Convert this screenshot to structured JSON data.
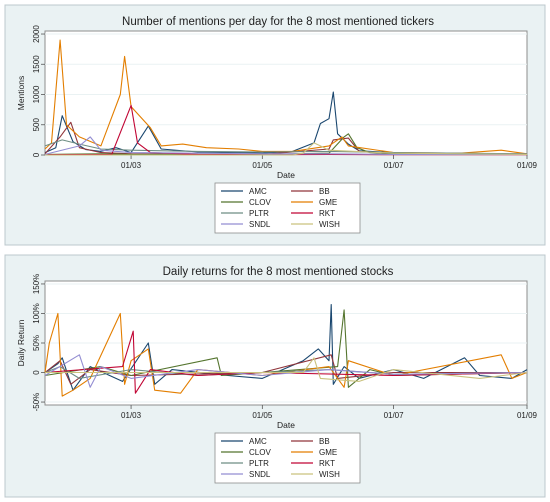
{
  "chart_data": [
    {
      "type": "line",
      "title": "Number of mentions per day for the 8 most mentioned tickers",
      "xlabel": "Date",
      "ylabel": "Mentions",
      "x_ticks": [
        "01/03",
        "01/05",
        "01/07",
        "01/09"
      ],
      "x_tick_dates": [
        "2021-03-01",
        "2021-05-01",
        "2021-07-01",
        "2021-09-01"
      ],
      "x_range": [
        "2021-01-20",
        "2021-09-01"
      ],
      "y_ticks": [
        "0",
        "500",
        "1000",
        "1500",
        "2000"
      ],
      "y_tick_values": [
        0,
        500,
        1000,
        1500,
        2000
      ],
      "ylim": [
        0,
        2050
      ],
      "grid": true,
      "legend_position": "bottom",
      "legend": [
        "AMC",
        "BB",
        "CLOV",
        "GME",
        "PLTR",
        "RKT",
        "SNDL",
        "WISH"
      ],
      "series": [
        {
          "name": "AMC",
          "color": "#1a476f",
          "points": [
            [
              "2021-01-20",
              40
            ],
            [
              "2021-01-25",
              120
            ],
            [
              "2021-01-28",
              650
            ],
            [
              "2021-02-02",
              220
            ],
            [
              "2021-02-08",
              90
            ],
            [
              "2021-02-15",
              60
            ],
            [
              "2021-02-22",
              120
            ],
            [
              "2021-03-01",
              40
            ],
            [
              "2021-03-09",
              480
            ],
            [
              "2021-03-15",
              100
            ],
            [
              "2021-04-01",
              50
            ],
            [
              "2021-04-15",
              40
            ],
            [
              "2021-05-01",
              30
            ],
            [
              "2021-05-15",
              60
            ],
            [
              "2021-05-25",
              200
            ],
            [
              "2021-05-28",
              520
            ],
            [
              "2021-06-01",
              600
            ],
            [
              "2021-06-03",
              1040
            ],
            [
              "2021-06-05",
              350
            ],
            [
              "2021-06-10",
              180
            ],
            [
              "2021-06-15",
              70
            ],
            [
              "2021-07-01",
              40
            ],
            [
              "2021-07-15",
              30
            ],
            [
              "2021-08-01",
              30
            ],
            [
              "2021-08-15",
              20
            ],
            [
              "2021-09-01",
              20
            ]
          ]
        },
        {
          "name": "BB",
          "color": "#90353b",
          "points": [
            [
              "2021-01-20",
              20
            ],
            [
              "2021-01-27",
              300
            ],
            [
              "2021-02-01",
              540
            ],
            [
              "2021-02-05",
              120
            ],
            [
              "2021-02-15",
              40
            ],
            [
              "2021-03-01",
              20
            ],
            [
              "2021-04-01",
              10
            ],
            [
              "2021-05-01",
              10
            ],
            [
              "2021-06-01",
              100
            ],
            [
              "2021-06-03",
              250
            ],
            [
              "2021-06-10",
              280
            ],
            [
              "2021-06-15",
              60
            ],
            [
              "2021-07-01",
              20
            ],
            [
              "2021-08-01",
              10
            ],
            [
              "2021-09-01",
              10
            ]
          ]
        },
        {
          "name": "CLOV",
          "color": "#55752f",
          "points": [
            [
              "2021-01-20",
              10
            ],
            [
              "2021-02-15",
              20
            ],
            [
              "2021-03-01",
              10
            ],
            [
              "2021-05-01",
              10
            ],
            [
              "2021-06-01",
              30
            ],
            [
              "2021-06-08",
              300
            ],
            [
              "2021-06-10",
              350
            ],
            [
              "2021-06-14",
              120
            ],
            [
              "2021-06-20",
              40
            ],
            [
              "2021-07-01",
              20
            ],
            [
              "2021-09-01",
              10
            ]
          ]
        },
        {
          "name": "GME",
          "color": "#e37e00",
          "points": [
            [
              "2021-01-20",
              100
            ],
            [
              "2021-01-23",
              200
            ],
            [
              "2021-01-27",
              1900
            ],
            [
              "2021-01-30",
              500
            ],
            [
              "2021-02-05",
              300
            ],
            [
              "2021-02-15",
              150
            ],
            [
              "2021-02-24",
              1000
            ],
            [
              "2021-02-26",
              1630
            ],
            [
              "2021-03-01",
              800
            ],
            [
              "2021-03-10",
              450
            ],
            [
              "2021-03-15",
              150
            ],
            [
              "2021-03-25",
              180
            ],
            [
              "2021-04-05",
              120
            ],
            [
              "2021-04-20",
              100
            ],
            [
              "2021-05-01",
              60
            ],
            [
              "2021-05-15",
              60
            ],
            [
              "2021-06-01",
              150
            ],
            [
              "2021-06-07",
              300
            ],
            [
              "2021-06-10",
              150
            ],
            [
              "2021-07-01",
              40
            ],
            [
              "2021-08-01",
              30
            ],
            [
              "2021-08-20",
              80
            ],
            [
              "2021-09-01",
              20
            ]
          ]
        },
        {
          "name": "PLTR",
          "color": "#6e8e84",
          "points": [
            [
              "2021-01-20",
              150
            ],
            [
              "2021-01-28",
              250
            ],
            [
              "2021-02-05",
              180
            ],
            [
              "2021-02-15",
              100
            ],
            [
              "2021-03-01",
              80
            ],
            [
              "2021-04-01",
              60
            ],
            [
              "2021-05-01",
              50
            ],
            [
              "2021-06-01",
              60
            ],
            [
              "2021-07-01",
              40
            ],
            [
              "2021-08-01",
              30
            ],
            [
              "2021-09-01",
              20
            ]
          ]
        },
        {
          "name": "RKT",
          "color": "#c10534",
          "points": [
            [
              "2021-01-20",
              5
            ],
            [
              "2021-02-20",
              10
            ],
            [
              "2021-03-01",
              820
            ],
            [
              "2021-03-04",
              200
            ],
            [
              "2021-03-10",
              40
            ],
            [
              "2021-04-01",
              10
            ],
            [
              "2021-05-01",
              5
            ],
            [
              "2021-06-01",
              10
            ],
            [
              "2021-07-01",
              5
            ],
            [
              "2021-09-01",
              5
            ]
          ]
        },
        {
          "name": "SNDL",
          "color": "#938dd2",
          "points": [
            [
              "2021-01-20",
              10
            ],
            [
              "2021-02-05",
              150
            ],
            [
              "2021-02-10",
              300
            ],
            [
              "2021-02-15",
              80
            ],
            [
              "2021-03-01",
              40
            ],
            [
              "2021-04-01",
              30
            ],
            [
              "2021-05-01",
              20
            ],
            [
              "2021-06-01",
              20
            ],
            [
              "2021-07-01",
              10
            ],
            [
              "2021-09-01",
              10
            ]
          ]
        },
        {
          "name": "WISH",
          "color": "#cac27e",
          "points": [
            [
              "2021-01-20",
              0
            ],
            [
              "2021-05-15",
              0
            ],
            [
              "2021-05-20",
              30
            ],
            [
              "2021-05-25",
              200
            ],
            [
              "2021-05-28",
              150
            ],
            [
              "2021-06-01",
              80
            ],
            [
              "2021-07-01",
              30
            ],
            [
              "2021-08-01",
              20
            ],
            [
              "2021-09-01",
              10
            ]
          ]
        }
      ]
    },
    {
      "type": "line",
      "title": "Daily returns for the 8 most mentioned stocks",
      "xlabel": "Date",
      "ylabel": "Daily Return",
      "x_ticks": [
        "01/03",
        "01/05",
        "01/07",
        "01/09"
      ],
      "x_tick_dates": [
        "2021-03-01",
        "2021-05-01",
        "2021-07-01",
        "2021-09-01"
      ],
      "x_range": [
        "2021-01-20",
        "2021-09-01"
      ],
      "y_ticks": [
        "-50%",
        "0",
        "50%",
        "100%",
        "150%"
      ],
      "y_tick_values": [
        -50,
        0,
        50,
        100,
        150
      ],
      "ylim": [
        -55,
        155
      ],
      "grid": true,
      "legend_position": "bottom",
      "legend": [
        "AMC",
        "BB",
        "CLOV",
        "GME",
        "PLTR",
        "RKT",
        "SNDL",
        "WISH"
      ],
      "series": [
        {
          "name": "AMC",
          "color": "#1a476f",
          "points": [
            [
              "2021-01-20",
              0
            ],
            [
              "2021-01-26",
              15
            ],
            [
              "2021-01-28",
              25
            ],
            [
              "2021-02-02",
              -30
            ],
            [
              "2021-02-10",
              10
            ],
            [
              "2021-02-25",
              -15
            ],
            [
              "2021-03-09",
              50
            ],
            [
              "2021-03-12",
              -20
            ],
            [
              "2021-03-20",
              5
            ],
            [
              "2021-04-15",
              -5
            ],
            [
              "2021-05-01",
              -10
            ],
            [
              "2021-05-20",
              20
            ],
            [
              "2021-05-27",
              40
            ],
            [
              "2021-06-01",
              20
            ],
            [
              "2021-06-02",
              115
            ],
            [
              "2021-06-03",
              -20
            ],
            [
              "2021-06-08",
              10
            ],
            [
              "2021-06-15",
              -10
            ],
            [
              "2021-07-01",
              5
            ],
            [
              "2021-07-15",
              -10
            ],
            [
              "2021-08-03",
              25
            ],
            [
              "2021-08-10",
              -5
            ],
            [
              "2021-08-25",
              -10
            ],
            [
              "2021-09-01",
              5
            ]
          ]
        },
        {
          "name": "BB",
          "color": "#90353b",
          "points": [
            [
              "2021-01-20",
              0
            ],
            [
              "2021-01-27",
              20
            ],
            [
              "2021-02-01",
              -20
            ],
            [
              "2021-02-10",
              5
            ],
            [
              "2021-03-01",
              -5
            ],
            [
              "2021-05-01",
              0
            ],
            [
              "2021-06-02",
              30
            ],
            [
              "2021-06-05",
              -10
            ],
            [
              "2021-07-01",
              0
            ],
            [
              "2021-09-01",
              0
            ]
          ]
        },
        {
          "name": "CLOV",
          "color": "#55752f",
          "points": [
            [
              "2021-01-20",
              -5
            ],
            [
              "2021-02-15",
              10
            ],
            [
              "2021-03-01",
              -5
            ],
            [
              "2021-04-10",
              25
            ],
            [
              "2021-04-12",
              -5
            ],
            [
              "2021-05-01",
              0
            ],
            [
              "2021-06-05",
              10
            ],
            [
              "2021-06-08",
              106
            ],
            [
              "2021-06-10",
              -25
            ],
            [
              "2021-06-20",
              5
            ],
            [
              "2021-07-01",
              -5
            ],
            [
              "2021-09-01",
              0
            ]
          ]
        },
        {
          "name": "GME",
          "color": "#e37e00",
          "points": [
            [
              "2021-01-20",
              0
            ],
            [
              "2021-01-22",
              50
            ],
            [
              "2021-01-26",
              100
            ],
            [
              "2021-01-28",
              -40
            ],
            [
              "2021-02-02",
              -30
            ],
            [
              "2021-02-10",
              -10
            ],
            [
              "2021-02-24",
              100
            ],
            [
              "2021-02-26",
              -20
            ],
            [
              "2021-03-01",
              20
            ],
            [
              "2021-03-09",
              40
            ],
            [
              "2021-03-12",
              -30
            ],
            [
              "2021-03-24",
              -35
            ],
            [
              "2021-04-01",
              5
            ],
            [
              "2021-05-01",
              -5
            ],
            [
              "2021-06-01",
              10
            ],
            [
              "2021-06-08",
              -25
            ],
            [
              "2021-06-10",
              20
            ],
            [
              "2021-07-01",
              -5
            ],
            [
              "2021-08-20",
              30
            ],
            [
              "2021-08-25",
              -10
            ],
            [
              "2021-09-01",
              0
            ]
          ]
        },
        {
          "name": "PLTR",
          "color": "#6e8e84",
          "points": [
            [
              "2021-01-20",
              0
            ],
            [
              "2021-01-27",
              10
            ],
            [
              "2021-02-05",
              -10
            ],
            [
              "2021-03-01",
              5
            ],
            [
              "2021-04-01",
              -5
            ],
            [
              "2021-05-01",
              0
            ],
            [
              "2021-06-01",
              5
            ],
            [
              "2021-07-01",
              -3
            ],
            [
              "2021-09-01",
              0
            ]
          ]
        },
        {
          "name": "RKT",
          "color": "#c10534",
          "points": [
            [
              "2021-01-20",
              0
            ],
            [
              "2021-02-25",
              10
            ],
            [
              "2021-03-02",
              70
            ],
            [
              "2021-03-03",
              -35
            ],
            [
              "2021-03-10",
              5
            ],
            [
              "2021-04-01",
              -5
            ],
            [
              "2021-05-01",
              0
            ],
            [
              "2021-07-01",
              -5
            ],
            [
              "2021-09-01",
              0
            ]
          ]
        },
        {
          "name": "SNDL",
          "color": "#938dd2",
          "points": [
            [
              "2021-01-20",
              -5
            ],
            [
              "2021-02-05",
              30
            ],
            [
              "2021-02-10",
              -25
            ],
            [
              "2021-02-15",
              10
            ],
            [
              "2021-03-01",
              -10
            ],
            [
              "2021-04-01",
              5
            ],
            [
              "2021-05-01",
              -5
            ],
            [
              "2021-06-01",
              5
            ],
            [
              "2021-07-01",
              -3
            ],
            [
              "2021-09-01",
              0
            ]
          ]
        },
        {
          "name": "WISH",
          "color": "#cac27e",
          "points": [
            [
              "2021-01-20",
              0
            ],
            [
              "2021-05-20",
              0
            ],
            [
              "2021-05-25",
              25
            ],
            [
              "2021-05-28",
              -10
            ],
            [
              "2021-06-15",
              -15
            ],
            [
              "2021-07-01",
              5
            ],
            [
              "2021-08-10",
              -10
            ],
            [
              "2021-09-01",
              0
            ]
          ]
        }
      ]
    }
  ]
}
